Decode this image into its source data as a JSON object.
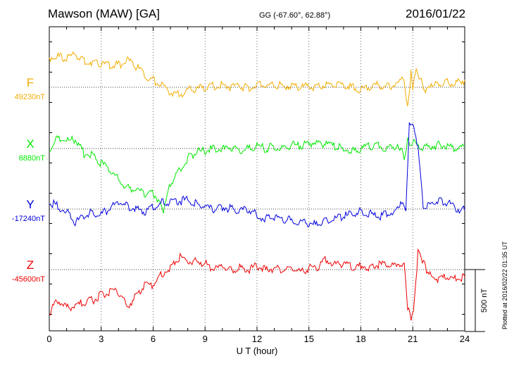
{
  "header": {
    "station": "Mawson (MAW)  [GA]",
    "coords": "GG (-67.60°,  62.88°)",
    "date": "2016/01/22"
  },
  "footer": {
    "plotted": "Plotted at 2016/02/22 01:35 UT"
  },
  "chart_data": {
    "type": "line",
    "xlabel": "U T (hour)",
    "xlim": [
      0,
      24
    ],
    "xticks": [
      "0",
      "3",
      "6",
      "9",
      "12",
      "15",
      "18",
      "21",
      "24"
    ],
    "scale_bar_label": "500 nT",
    "scale_bar_nT": 500,
    "series": [
      {
        "name": "F",
        "baseline_label": "49230nT",
        "color": "#f2ad00",
        "x": [
          0,
          0.5,
          1,
          1.5,
          2,
          2.5,
          3,
          3.5,
          4,
          4.5,
          5,
          5.5,
          6,
          6.5,
          7,
          7.5,
          8,
          8.5,
          9,
          9.5,
          10,
          10.5,
          11,
          11.5,
          12,
          12.5,
          13,
          13.5,
          14,
          14.5,
          15,
          15.5,
          16,
          16.5,
          17,
          17.5,
          18,
          18.5,
          19,
          19.5,
          20,
          20.5,
          20.7,
          20.9,
          21,
          21.2,
          21.5,
          21.8,
          22,
          22.5,
          23,
          23.5,
          24
        ],
        "y": [
          240,
          250,
          230,
          270,
          210,
          200,
          190,
          180,
          180,
          220,
          170,
          100,
          60,
          20,
          -40,
          -60,
          -20,
          -10,
          0,
          10,
          20,
          0,
          10,
          -10,
          20,
          10,
          20,
          10,
          20,
          0,
          10,
          0,
          20,
          10,
          20,
          0,
          -20,
          0,
          20,
          0,
          20,
          80,
          -150,
          120,
          -30,
          160,
          40,
          -30,
          0,
          20,
          40,
          30,
          60
        ]
      },
      {
        "name": "X",
        "baseline_label": "6880nT",
        "color": "#00e800",
        "x": [
          0,
          0.5,
          1,
          1.5,
          2,
          2.5,
          3,
          3.5,
          4,
          4.5,
          5,
          5.5,
          6,
          6.3,
          6.6,
          7,
          7.5,
          8,
          8.5,
          9,
          9.5,
          10,
          10.5,
          11,
          11.5,
          12,
          12.5,
          13,
          13.5,
          14,
          14.5,
          15,
          15.5,
          16,
          16.5,
          17,
          17.5,
          18,
          18.5,
          19,
          19.5,
          20,
          20.5,
          20.7,
          21,
          21.5,
          22,
          22.5,
          23,
          23.5,
          24
        ],
        "y": [
          0,
          80,
          60,
          70,
          -40,
          -50,
          -120,
          -170,
          -250,
          -320,
          -340,
          -360,
          -360,
          -420,
          -500,
          -280,
          -180,
          -80,
          -30,
          -20,
          0,
          -10,
          10,
          -20,
          0,
          20,
          0,
          20,
          0,
          30,
          20,
          40,
          50,
          30,
          20,
          0,
          -20,
          0,
          20,
          30,
          0,
          20,
          -60,
          60,
          50,
          0,
          20,
          30,
          20,
          0,
          20
        ]
      },
      {
        "name": "Y",
        "baseline_label": "-17240nT",
        "color": "#0000dd",
        "x": [
          0,
          0.5,
          1,
          1.5,
          2,
          2.5,
          3,
          3.5,
          4,
          4.5,
          5,
          5.5,
          6,
          6.5,
          7,
          7.5,
          8,
          8.5,
          9,
          9.5,
          10,
          10.5,
          11,
          11.5,
          12,
          12.5,
          13,
          13.5,
          14,
          14.5,
          15,
          15.5,
          16,
          16.5,
          17,
          17.5,
          18,
          18.5,
          19,
          19.5,
          20,
          20.3,
          20.6,
          20.8,
          21,
          21.3,
          21.6,
          22,
          22.5,
          23,
          23.5,
          24
        ],
        "y": [
          60,
          20,
          -20,
          -120,
          -50,
          -30,
          -40,
          0,
          60,
          20,
          0,
          -20,
          20,
          50,
          60,
          60,
          80,
          40,
          20,
          0,
          20,
          0,
          -20,
          0,
          -50,
          -80,
          -60,
          -80,
          -90,
          -100,
          -120,
          -130,
          -100,
          -80,
          -60,
          -40,
          -20,
          -40,
          -60,
          -40,
          -20,
          50,
          0,
          700,
          680,
          500,
          20,
          50,
          80,
          50,
          0,
          -10
        ]
      },
      {
        "name": "Z",
        "baseline_label": "-45600nT",
        "color": "#ee0000",
        "x": [
          0,
          0.5,
          1,
          1.5,
          2,
          2.5,
          3,
          3.5,
          4,
          4.5,
          5,
          5.5,
          6,
          6.5,
          7,
          7.5,
          8,
          8.5,
          9,
          9.5,
          10,
          10.5,
          11,
          11.5,
          12,
          12.5,
          13,
          13.5,
          14,
          14.5,
          15,
          15.5,
          16,
          16.5,
          17,
          17.5,
          18,
          18.5,
          19,
          19.5,
          20,
          20.5,
          20.7,
          20.9,
          21.1,
          21.3,
          21.5,
          21.8,
          22,
          22.5,
          23,
          23.5,
          24
        ],
        "y": [
          -350,
          -250,
          -300,
          -300,
          -260,
          -250,
          -200,
          -180,
          -180,
          -300,
          -210,
          -120,
          -120,
          -40,
          20,
          100,
          60,
          70,
          50,
          0,
          20,
          -10,
          20,
          0,
          30,
          0,
          10,
          -10,
          20,
          -20,
          10,
          20,
          80,
          40,
          50,
          20,
          30,
          20,
          40,
          30,
          40,
          50,
          -300,
          -400,
          -260,
          150,
          100,
          0,
          -50,
          -80,
          -60,
          -80,
          -60
        ]
      }
    ]
  }
}
